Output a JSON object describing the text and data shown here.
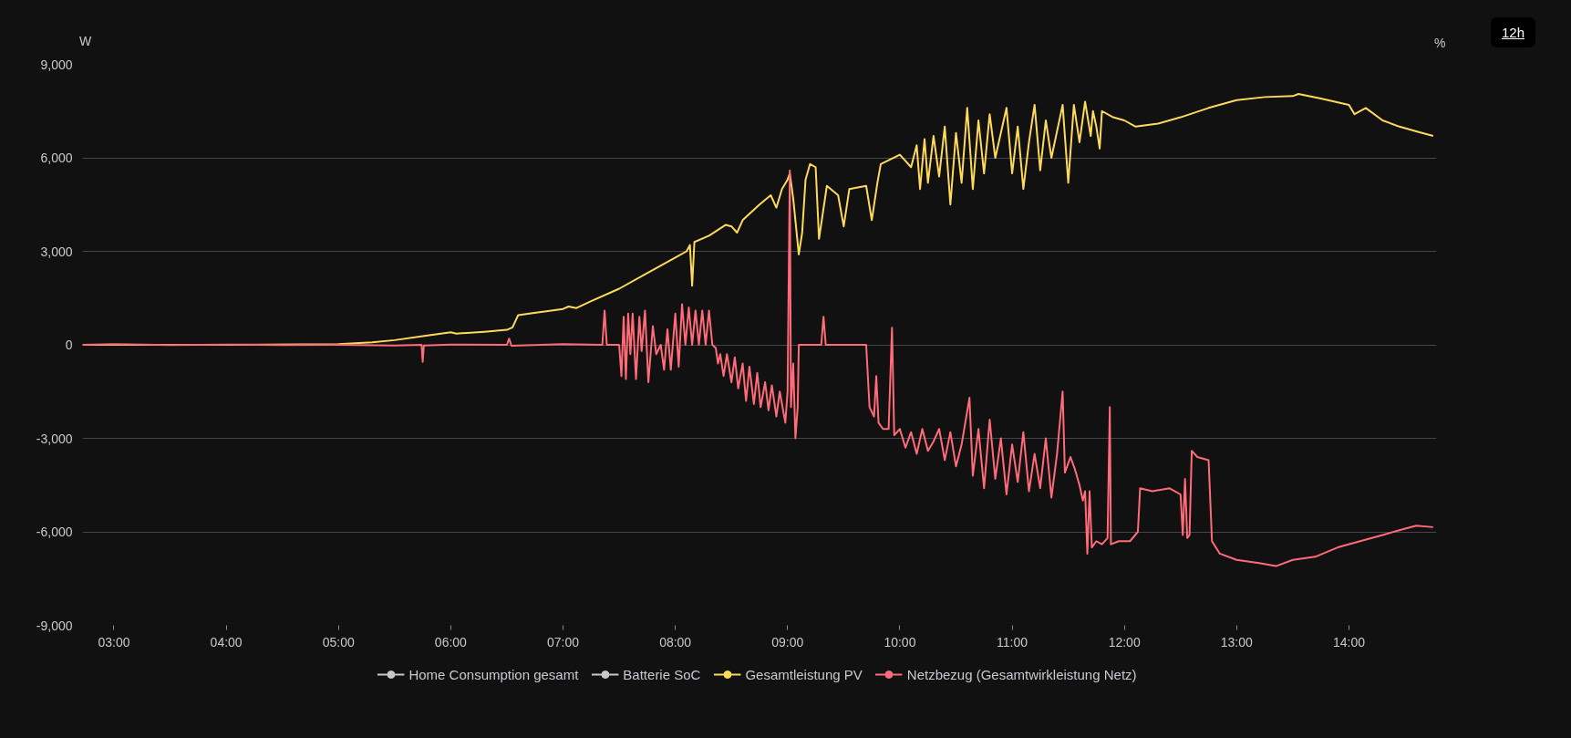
{
  "chart_data": {
    "type": "line",
    "ylabel": "W",
    "y2label": "%",
    "annotations": [
      "12h"
    ],
    "legend": "bottom",
    "grid": "y",
    "marker": "none",
    "line_style": "solid",
    "xlim": [
      2.72,
      14.78
    ],
    "ylim": [
      -9000,
      9000
    ],
    "xticks": [
      {
        "value": 3,
        "label": "03:00"
      },
      {
        "value": 4,
        "label": "04:00"
      },
      {
        "value": 5,
        "label": "05:00"
      },
      {
        "value": 6,
        "label": "06:00"
      },
      {
        "value": 7,
        "label": "07:00"
      },
      {
        "value": 8,
        "label": "08:00"
      },
      {
        "value": 9,
        "label": "09:00"
      },
      {
        "value": 10,
        "label": "10:00"
      },
      {
        "value": 11,
        "label": "11:00"
      },
      {
        "value": 12,
        "label": "12:00"
      },
      {
        "value": 13,
        "label": "13:00"
      },
      {
        "value": 14,
        "label": "14:00"
      }
    ],
    "yticks": [
      {
        "value": -9000,
        "label": "-9,000"
      },
      {
        "value": -6000,
        "label": "-6,000"
      },
      {
        "value": -3000,
        "label": "-3,000"
      },
      0,
      {
        "value": 3000,
        "label": "3,000"
      },
      {
        "value": 6000,
        "label": "6,000"
      },
      {
        "value": 9000,
        "label": "9,000"
      }
    ],
    "series": [
      {
        "name": "Home Consumption gesamt",
        "color": "#c8c8c8"
      },
      {
        "name": "Batterie SoC",
        "color": "#c8c8c8"
      },
      {
        "name": "Gesamtleistung PV",
        "color": "#ffd95a",
        "x": [
          2.72,
          4.0,
          5.0,
          5.3,
          5.5,
          5.75,
          6.0,
          6.05,
          6.3,
          6.5,
          6.55,
          6.6,
          6.7,
          7.0,
          7.05,
          7.12,
          7.25,
          7.5,
          7.75,
          8.0,
          8.1,
          8.13,
          8.15,
          8.17,
          8.3,
          8.45,
          8.5,
          8.55,
          8.6,
          8.75,
          8.85,
          8.9,
          8.95,
          9.0,
          9.02,
          9.05,
          9.1,
          9.13,
          9.16,
          9.2,
          9.25,
          9.28,
          9.35,
          9.45,
          9.5,
          9.55,
          9.7,
          9.75,
          9.8,
          9.83,
          10.0,
          10.05,
          10.1,
          10.15,
          10.18,
          10.22,
          10.25,
          10.3,
          10.35,
          10.4,
          10.45,
          10.5,
          10.55,
          10.6,
          10.65,
          10.7,
          10.75,
          10.8,
          10.85,
          10.95,
          11.0,
          11.05,
          11.1,
          11.15,
          11.2,
          11.25,
          11.3,
          11.35,
          11.45,
          11.5,
          11.55,
          11.6,
          11.65,
          11.7,
          11.72,
          11.75,
          11.78,
          11.8,
          11.9,
          12.0,
          12.1,
          12.3,
          12.5,
          12.75,
          13.0,
          13.25,
          13.5,
          13.55,
          13.75,
          14.0,
          14.05,
          14.15,
          14.3,
          14.45,
          14.6,
          14.75
        ],
        "values": [
          0,
          0,
          20,
          80,
          150,
          280,
          400,
          360,
          420,
          480,
          560,
          950,
          1000,
          1150,
          1230,
          1180,
          1400,
          1800,
          2300,
          2800,
          3000,
          3200,
          1900,
          3300,
          3500,
          3850,
          3800,
          3600,
          4000,
          4500,
          4800,
          4400,
          5000,
          5300,
          5500,
          4700,
          2900,
          3600,
          5300,
          5800,
          5700,
          3400,
          5100,
          4800,
          3800,
          5000,
          5100,
          4000,
          5200,
          5800,
          6100,
          5900,
          5700,
          6400,
          5000,
          6600,
          5200,
          6700,
          5400,
          7000,
          4500,
          6800,
          5200,
          7600,
          5000,
          7200,
          5500,
          7400,
          6000,
          7600,
          5500,
          7000,
          5000,
          6500,
          7700,
          5600,
          7200,
          6000,
          7700,
          5200,
          7700,
          6500,
          7800,
          6700,
          7500,
          7000,
          6300,
          7500,
          7300,
          7200,
          7000,
          7100,
          7300,
          7600,
          7850,
          7950,
          7980,
          8050,
          7900,
          7700,
          7400,
          7600,
          7200,
          7000,
          6850,
          6700
        ]
      },
      {
        "name": "Netzbezug (Gesamtwirkleistung Netz)",
        "color": "#ff6b78",
        "x": [
          2.72,
          3.0,
          3.5,
          4.0,
          4.5,
          5.0,
          5.5,
          5.74,
          5.75,
          5.76,
          6.0,
          6.5,
          6.52,
          6.54,
          7.0,
          7.35,
          7.37,
          7.39,
          7.5,
          7.52,
          7.54,
          7.56,
          7.58,
          7.6,
          7.62,
          7.65,
          7.68,
          7.7,
          7.73,
          7.76,
          7.8,
          7.83,
          7.87,
          7.9,
          7.93,
          7.96,
          8.0,
          8.03,
          8.06,
          8.09,
          8.12,
          8.15,
          8.18,
          8.21,
          8.24,
          8.27,
          8.3,
          8.33,
          8.36,
          8.38,
          8.4,
          8.43,
          8.46,
          8.5,
          8.53,
          8.56,
          8.6,
          8.63,
          8.66,
          8.7,
          8.73,
          8.76,
          8.8,
          8.83,
          8.86,
          8.9,
          8.93,
          8.98,
          9.0,
          9.02,
          9.03,
          9.05,
          9.07,
          9.09,
          9.1,
          9.3,
          9.32,
          9.34,
          9.7,
          9.73,
          9.77,
          9.79,
          9.81,
          9.85,
          9.9,
          9.93,
          9.95,
          10.0,
          10.05,
          10.1,
          10.15,
          10.2,
          10.25,
          10.3,
          10.35,
          10.4,
          10.45,
          10.5,
          10.55,
          10.62,
          10.65,
          10.7,
          10.75,
          10.8,
          10.85,
          10.9,
          10.95,
          11.0,
          11.05,
          11.1,
          11.15,
          11.2,
          11.25,
          11.3,
          11.35,
          11.4,
          11.45,
          11.47,
          11.52,
          11.56,
          11.6,
          11.63,
          11.65,
          11.67,
          11.69,
          11.71,
          11.75,
          11.8,
          11.85,
          11.87,
          11.88,
          11.95,
          12.05,
          12.12,
          12.14,
          12.25,
          12.4,
          12.5,
          12.52,
          12.54,
          12.56,
          12.58,
          12.6,
          12.65,
          12.75,
          12.78,
          12.85,
          13.0,
          13.2,
          13.35,
          13.5,
          13.7,
          13.9,
          14.1,
          14.3,
          14.5,
          14.6,
          14.75
        ],
        "values": [
          0,
          20,
          -10,
          10,
          -10,
          0,
          -20,
          0,
          -550,
          -20,
          10,
          0,
          200,
          -30,
          20,
          0,
          1100,
          0,
          0,
          -1000,
          900,
          -1100,
          1000,
          -300,
          1000,
          -1100,
          900,
          -200,
          1100,
          -1200,
          600,
          -300,
          0,
          -800,
          500,
          -800,
          1000,
          -700,
          1300,
          0,
          1200,
          0,
          1100,
          0,
          1100,
          0,
          1100,
          0,
          -100,
          -600,
          -300,
          -1000,
          -300,
          -1200,
          -400,
          -1400,
          -600,
          -1800,
          -700,
          -1900,
          -900,
          -2000,
          -1200,
          -2100,
          -1300,
          -2300,
          -1500,
          -2500,
          -1500,
          5600,
          -2000,
          -600,
          -3000,
          -2000,
          0,
          0,
          900,
          0,
          0,
          -2000,
          -2300,
          -1000,
          -2500,
          -2700,
          -2700,
          550,
          -2900,
          -2700,
          -3300,
          -2800,
          -3500,
          -2700,
          -3400,
          -3100,
          -2700,
          -3700,
          -2800,
          -3900,
          -3200,
          -1700,
          -4200,
          -2700,
          -4600,
          -2400,
          -4300,
          -3000,
          -4800,
          -3200,
          -4400,
          -2800,
          -4700,
          -3500,
          -4600,
          -3000,
          -4900,
          -3500,
          -1500,
          -4100,
          -3600,
          -4000,
          -4500,
          -5000,
          -4700,
          -6700,
          -4700,
          -6500,
          -6300,
          -6400,
          -6200,
          -2000,
          -6400,
          -6300,
          -6300,
          -6000,
          -4600,
          -4700,
          -4600,
          -4800,
          -6100,
          -4300,
          -6200,
          -6100,
          -3400,
          -3600,
          -3700,
          -6300,
          -6700,
          -6900,
          -7000,
          -7100,
          -6900,
          -6800,
          -6500,
          -6300,
          -6100,
          -5900,
          -5800,
          -5850
        ]
      }
    ]
  }
}
